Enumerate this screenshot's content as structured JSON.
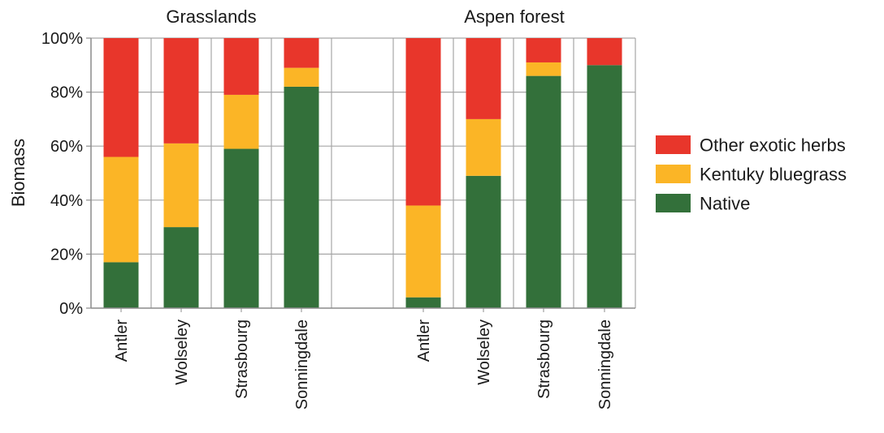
{
  "chart_data": {
    "type": "bar",
    "stacked": true,
    "percent": true,
    "ylabel": "Biomass",
    "ylim": [
      0,
      100
    ],
    "yticks": [
      "0%",
      "20%",
      "40%",
      "60%",
      "80%",
      "100%"
    ],
    "grid": true,
    "legend_position": "right",
    "groups": [
      {
        "title": "Grasslands",
        "categories": [
          "Antler",
          "Wolseley",
          "Strasbourg",
          "Sonningdale"
        ],
        "series": [
          {
            "name": "Native",
            "color": "#33703a",
            "values": [
              17,
              30,
              59,
              82
            ]
          },
          {
            "name": "Kentuky bluegrass",
            "color": "#fbb526",
            "values": [
              39,
              31,
              20,
              7
            ]
          },
          {
            "name": "Other exotic herbs",
            "color": "#e8362b",
            "values": [
              44,
              39,
              21,
              11
            ]
          }
        ]
      },
      {
        "title": "Aspen forest",
        "categories": [
          "Antler",
          "Wolseley",
          "Strasbourg",
          "Sonningdale"
        ],
        "series": [
          {
            "name": "Native",
            "color": "#33703a",
            "values": [
              4,
              49,
              86,
              90
            ]
          },
          {
            "name": "Kentuky bluegrass",
            "color": "#fbb526",
            "values": [
              34,
              21,
              5,
              0
            ]
          },
          {
            "name": "Other exotic herbs",
            "color": "#e8362b",
            "values": [
              62,
              30,
              9,
              10
            ]
          }
        ]
      }
    ],
    "legend": [
      {
        "name": "Other exotic herbs",
        "color": "#e8362b"
      },
      {
        "name": "Kentuky bluegrass",
        "color": "#fbb526"
      },
      {
        "name": "Native",
        "color": "#33703a"
      }
    ]
  }
}
